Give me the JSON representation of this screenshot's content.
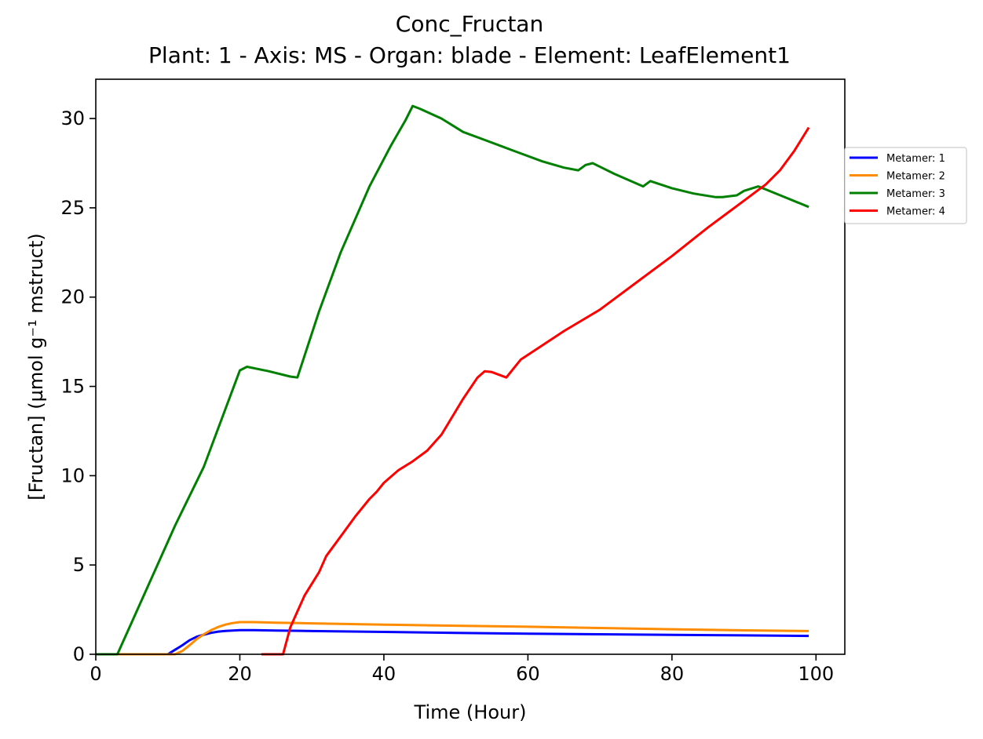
{
  "chart_data": {
    "type": "line",
    "title": "Conc_Fructan",
    "subtitle": "Plant: 1 - Axis: MS - Organ: blade - Element: LeafElement1",
    "xlabel": "Time (Hour)",
    "ylabel": "[Fructan] (µmol g⁻¹ mstruct)",
    "xlim": [
      0,
      104
    ],
    "ylim": [
      0,
      32.2
    ],
    "xticks": [
      0,
      20,
      40,
      60,
      80,
      100
    ],
    "yticks": [
      0,
      5,
      10,
      15,
      20,
      25,
      30
    ],
    "grid": false,
    "legend_position": "right, outside plot area, upper",
    "series": [
      {
        "name": "Metamer: 1",
        "color": "#0000ff",
        "points": [
          [
            0,
            0
          ],
          [
            10,
            0
          ],
          [
            11,
            0.25
          ],
          [
            12,
            0.5
          ],
          [
            13,
            0.78
          ],
          [
            14,
            0.98
          ],
          [
            15,
            1.1
          ],
          [
            16,
            1.2
          ],
          [
            17,
            1.27
          ],
          [
            18,
            1.31
          ],
          [
            19,
            1.33
          ],
          [
            20,
            1.35
          ],
          [
            22,
            1.35
          ],
          [
            25,
            1.33
          ],
          [
            30,
            1.3
          ],
          [
            40,
            1.25
          ],
          [
            50,
            1.2
          ],
          [
            60,
            1.15
          ],
          [
            70,
            1.12
          ],
          [
            80,
            1.09
          ],
          [
            90,
            1.06
          ],
          [
            99,
            1.03
          ]
        ]
      },
      {
        "name": "Metamer: 2",
        "color": "#ff8c00",
        "points": [
          [
            0,
            0
          ],
          [
            11,
            0
          ],
          [
            12,
            0.18
          ],
          [
            13,
            0.5
          ],
          [
            14,
            0.85
          ],
          [
            15,
            1.12
          ],
          [
            16,
            1.35
          ],
          [
            17,
            1.53
          ],
          [
            18,
            1.66
          ],
          [
            19,
            1.75
          ],
          [
            20,
            1.8
          ],
          [
            22,
            1.8
          ],
          [
            25,
            1.77
          ],
          [
            30,
            1.73
          ],
          [
            40,
            1.66
          ],
          [
            50,
            1.6
          ],
          [
            60,
            1.54
          ],
          [
            70,
            1.47
          ],
          [
            80,
            1.4
          ],
          [
            90,
            1.34
          ],
          [
            99,
            1.3
          ]
        ]
      },
      {
        "name": "Metamer: 3",
        "color": "#008000",
        "points": [
          [
            0,
            0
          ],
          [
            3,
            0
          ],
          [
            5,
            1.8
          ],
          [
            8,
            4.5
          ],
          [
            11,
            7.2
          ],
          [
            15,
            10.5
          ],
          [
            20,
            15.9
          ],
          [
            21,
            16.1
          ],
          [
            24,
            15.85
          ],
          [
            27,
            15.55
          ],
          [
            28,
            15.5
          ],
          [
            31,
            19.2
          ],
          [
            34,
            22.5
          ],
          [
            38,
            26.2
          ],
          [
            41,
            28.5
          ],
          [
            43,
            29.9
          ],
          [
            44,
            30.7
          ],
          [
            45,
            30.55
          ],
          [
            48,
            30.0
          ],
          [
            51,
            29.25
          ],
          [
            54,
            28.8
          ],
          [
            58,
            28.2
          ],
          [
            62,
            27.6
          ],
          [
            65,
            27.25
          ],
          [
            67,
            27.1
          ],
          [
            68,
            27.4
          ],
          [
            69,
            27.5
          ],
          [
            72,
            26.9
          ],
          [
            76,
            26.2
          ],
          [
            77,
            26.5
          ],
          [
            80,
            26.1
          ],
          [
            83,
            25.8
          ],
          [
            86,
            25.6
          ],
          [
            87,
            25.6
          ],
          [
            89,
            25.7
          ],
          [
            90,
            25.95
          ],
          [
            92,
            26.2
          ],
          [
            99,
            25.05
          ]
        ]
      },
      {
        "name": "Metamer: 4",
        "color": "#ff0000",
        "points": [
          [
            23,
            0
          ],
          [
            26,
            0
          ],
          [
            27,
            1.5
          ],
          [
            28,
            2.4
          ],
          [
            29,
            3.3
          ],
          [
            31,
            4.6
          ],
          [
            32,
            5.5
          ],
          [
            34,
            6.6
          ],
          [
            36,
            7.7
          ],
          [
            38,
            8.7
          ],
          [
            39,
            9.1
          ],
          [
            40,
            9.6
          ],
          [
            42,
            10.3
          ],
          [
            44,
            10.8
          ],
          [
            46,
            11.4
          ],
          [
            48,
            12.3
          ],
          [
            51,
            14.3
          ],
          [
            52,
            14.9
          ],
          [
            53,
            15.5
          ],
          [
            54,
            15.85
          ],
          [
            55,
            15.8
          ],
          [
            57,
            15.5
          ],
          [
            58,
            16.0
          ],
          [
            59,
            16.5
          ],
          [
            62,
            17.3
          ],
          [
            65,
            18.1
          ],
          [
            70,
            19.3
          ],
          [
            75,
            20.8
          ],
          [
            80,
            22.3
          ],
          [
            85,
            23.9
          ],
          [
            88,
            24.8
          ],
          [
            90,
            25.4
          ],
          [
            92,
            26.0
          ],
          [
            93,
            26.3
          ],
          [
            94,
            26.7
          ],
          [
            95,
            27.1
          ],
          [
            97,
            28.2
          ],
          [
            99,
            29.5
          ]
        ]
      }
    ]
  }
}
